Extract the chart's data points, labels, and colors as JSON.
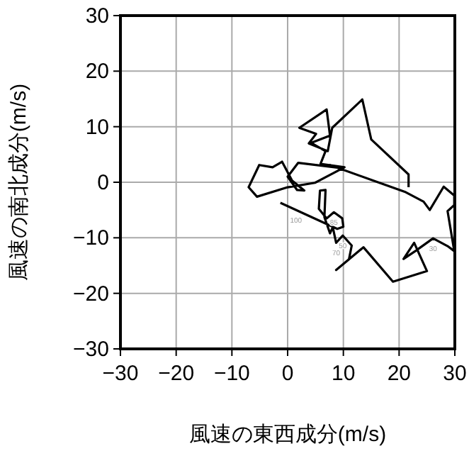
{
  "chart_data": {
    "type": "line",
    "xlabel": "風速の東西成分(m/s)",
    "ylabel": "風速の南北成分(m/s)",
    "xlim": [
      -30,
      30
    ],
    "ylim": [
      -30,
      30
    ],
    "xticks": [
      -30,
      -20,
      -10,
      0,
      10,
      20,
      30
    ],
    "yticks": [
      -30,
      -20,
      -10,
      0,
      10,
      20,
      30
    ],
    "grid": true,
    "marker": "none",
    "line_style": "solid",
    "series": [
      {
        "color": "#000000",
        "x": [
          -1.3,
          8.9,
          10.0,
          9.8,
          8.3,
          7.0,
          5.6,
          5.8,
          6.8,
          6.6,
          7.6,
          8.1,
          8.7,
          9.9,
          11.5,
          11.0,
          8.7,
          13.6,
          18.9,
          25.0,
          22.7,
          20.8,
          22.9,
          26.1,
          28.7,
          29.9,
          28.7,
          29.9,
          29.9,
          28.0,
          25.5,
          24.4,
          21.2,
          7.6,
          10.0,
          1.9,
          0.0,
          1.7,
          3.0,
          0.8,
          -1.0,
          -2.7,
          -5.1,
          -7.0,
          -5.5,
          0.0,
          4.9,
          10.2,
          5.9,
          6.8,
          4.2,
          7.6,
          7.0,
          2.1,
          5.1,
          3.8,
          7.2,
          8.0,
          13.4,
          15.0,
          21.7,
          21.7
        ],
        "values": [
          -3.7,
          -8.4,
          -8.0,
          -6.5,
          -5.4,
          -6.5,
          -4.8,
          -1.5,
          -1.4,
          -6.3,
          -9.2,
          -8.1,
          -10.9,
          -9.6,
          -11.4,
          -13.9,
          -15.8,
          -11.7,
          -17.9,
          -16.0,
          -10.9,
          -13.8,
          -12.4,
          -10.1,
          -11.5,
          -12.4,
          -5.2,
          -4.1,
          -2.4,
          -0.8,
          -5.0,
          -3.5,
          -1.8,
          3.1,
          2.5,
          3.5,
          1.0,
          -1.4,
          -1.5,
          0.3,
          3.7,
          2.7,
          3.1,
          -0.9,
          -2.6,
          -0.9,
          -0.1,
          2.7,
          3.3,
          5.6,
          7.1,
          8.4,
          13.1,
          9.8,
          8.7,
          7.0,
          5.6,
          9.8,
          14.9,
          7.7,
          1.4,
          -0.9
        ]
      }
    ],
    "annotations": [
      {
        "text": "100",
        "x": 1.5,
        "y": -5.0
      },
      {
        "text": "85",
        "x": 8.3,
        "y": -5.4
      },
      {
        "text": "70",
        "x": 8.7,
        "y": -10.9
      },
      {
        "text": "50",
        "x": 9.9,
        "y": -9.6
      },
      {
        "text": "30",
        "x": 26.1,
        "y": -10.1
      }
    ]
  }
}
